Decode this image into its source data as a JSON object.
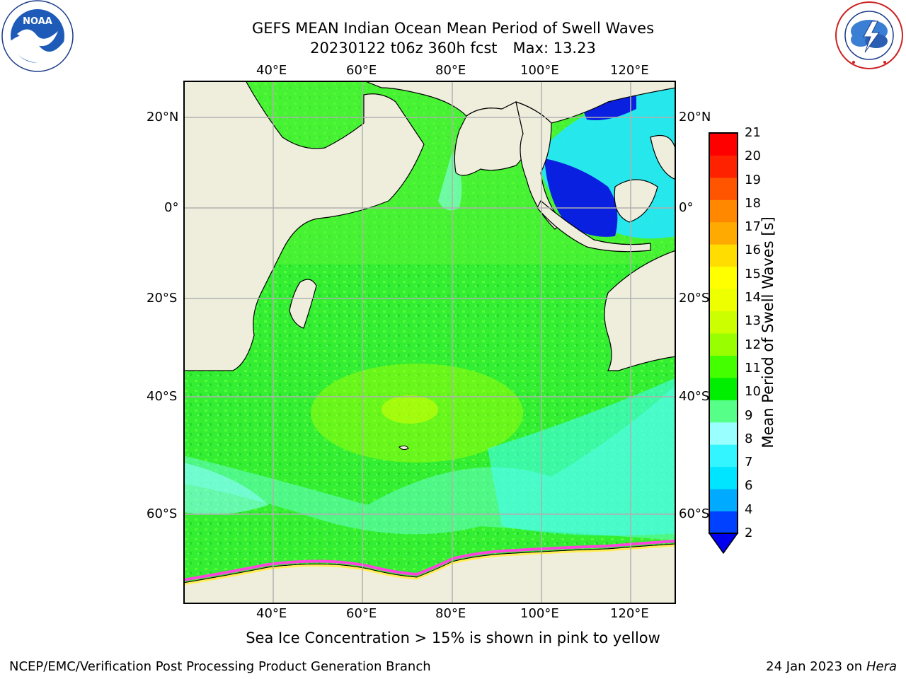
{
  "header": {
    "title_line1": "GEFS MEAN Indian Ocean Mean Period of Swell Waves",
    "title_line2": "20230122 t06z 360h fcst",
    "max_text": "Max: 13.23"
  },
  "logos": {
    "left": {
      "name": "noaa-logo",
      "text": "NOAA",
      "ring_text": "NATIONAL OCEANIC AND ATMOSPHERIC ADMINISTRATION · U.S. DEPARTMENT OF COMMERCE"
    },
    "right": {
      "name": "nws-logo",
      "ring_text": "NATIONAL WEATHER SERVICE"
    }
  },
  "map": {
    "lon_ticks_top": [
      "40°E",
      "60°E",
      "80°E",
      "100°E",
      "120°E"
    ],
    "lon_ticks_bottom": [
      "40°E",
      "60°E",
      "80°E",
      "100°E",
      "120°E"
    ],
    "lat_ticks_left": [
      "20°N",
      "0°",
      "20°S",
      "40°S",
      "60°S"
    ],
    "lat_ticks_right": [
      "20°N",
      "0°",
      "20°S",
      "40°S",
      "60°S"
    ],
    "colors": {
      "land": "#efeedd",
      "grid": "#b0b0b0",
      "ice_pink": "#ff44dd",
      "ice_yellow": "#ffee55"
    }
  },
  "colorbar": {
    "label": "Mean Period of Swell Waves [s]",
    "tick_labels": [
      "2",
      "4",
      "6",
      "7",
      "8",
      "9",
      "10",
      "11",
      "12",
      "13",
      "14",
      "15",
      "16",
      "17",
      "18",
      "19",
      "20",
      "21"
    ],
    "colors": [
      "#0040ff",
      "#00aaff",
      "#00e5ff",
      "#33f5ff",
      "#99ffff",
      "#55ff88",
      "#00ee00",
      "#44ff00",
      "#99ff00",
      "#ccff00",
      "#eeff00",
      "#ffff00",
      "#ffdd00",
      "#ffaa00",
      "#ff8800",
      "#ff5500",
      "#ff2200",
      "#ff0000"
    ],
    "extend_color": "#0000ee"
  },
  "notes": {
    "ice_note": "Sea Ice Concentration > 15% is shown in pink to yellow"
  },
  "footer": {
    "left": "NCEP/EMC/Verification Post Processing Product Generation Branch",
    "right_date": "24 Jan 2023 on",
    "right_host": "Hera"
  }
}
